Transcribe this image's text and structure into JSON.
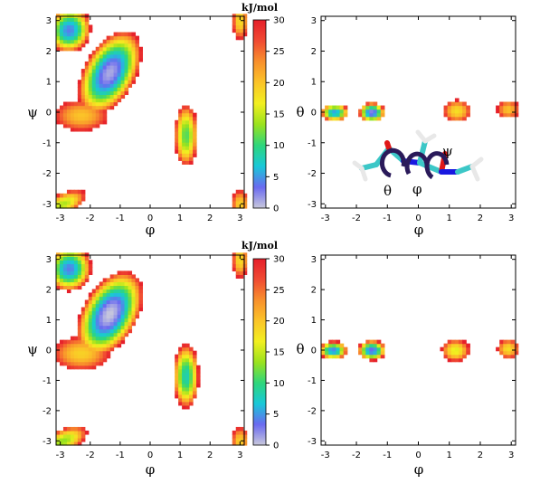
{
  "figure": {
    "colorbar_unit": "kJ/mol",
    "colorbar_ticks": [
      "0",
      "5",
      "10",
      "15",
      "20",
      "25",
      "30"
    ],
    "colorbar_range": [
      0,
      30
    ],
    "colorbar_colors": [
      "#c8c8dc",
      "#6a6af0",
      "#18c8d8",
      "#2ed67c",
      "#9ae21e",
      "#f2ef20",
      "#fbc428",
      "#f8902c",
      "#f04a32",
      "#e51e2a"
    ]
  },
  "molecule": {
    "labels": {
      "theta": "θ",
      "phi": "φ",
      "psi": "ψ"
    },
    "atom_colors": {
      "carbon": "#3cc7c7",
      "oxygen": "#e01818",
      "nitrogen": "#1818e0",
      "hydrogen": "#e8e8e8",
      "arrow": "#2a1a5a"
    }
  },
  "chart_data": [
    {
      "type": "heatmap",
      "panel": "top-left",
      "xlabel": "φ",
      "ylabel": "ψ",
      "xlim": [
        -3.14,
        3.14
      ],
      "ylim": [
        -3.14,
        3.14
      ],
      "xticks": [
        "-3",
        "-2",
        "-1",
        "0",
        "1",
        "2",
        "3"
      ],
      "yticks": [
        "-3",
        "-2",
        "-1",
        "0",
        "1",
        "2",
        "3"
      ],
      "colorbar": true,
      "basins": [
        {
          "x": -1.35,
          "y": 1.3,
          "sx": 0.85,
          "sy": 1.5,
          "rot": -30,
          "min": 1
        },
        {
          "x": -2.7,
          "y": 2.7,
          "sx": 0.7,
          "sy": 0.75,
          "rot": -30,
          "min": 4
        },
        {
          "x": -2.3,
          "y": -0.1,
          "sx": 0.9,
          "sy": 0.5,
          "rot": 0,
          "min": 20
        },
        {
          "x": 1.2,
          "y": -0.75,
          "sx": 0.38,
          "sy": 1.0,
          "rot": 0,
          "min": 11
        },
        {
          "x": -2.9,
          "y": -3.0,
          "sx": 0.8,
          "sy": 0.35,
          "rot": 25,
          "min": 14
        },
        {
          "x": 3.0,
          "y": 3.0,
          "sx": 0.25,
          "sy": 0.6,
          "rot": 0,
          "min": 18
        },
        {
          "x": 3.0,
          "y": -3.0,
          "sx": 0.28,
          "sy": 0.45,
          "rot": 0,
          "min": 19
        }
      ]
    },
    {
      "type": "heatmap",
      "panel": "top-right",
      "xlabel": "φ",
      "ylabel": "θ",
      "xlim": [
        -3.14,
        3.14
      ],
      "ylim": [
        -3.14,
        3.14
      ],
      "xticks": [
        "-3",
        "-2",
        "-1",
        "0",
        "1",
        "2",
        "3"
      ],
      "yticks": [
        "-3",
        "-2",
        "-1",
        "0",
        "1",
        "2",
        "3"
      ],
      "colorbar": false,
      "basins": [
        {
          "x": -1.5,
          "y": 0.0,
          "sx": 0.42,
          "sy": 0.32,
          "rot": 0,
          "min": 2
        },
        {
          "x": -2.7,
          "y": 0.0,
          "sx": 0.45,
          "sy": 0.28,
          "rot": 0,
          "min": 5
        },
        {
          "x": 1.25,
          "y": 0.05,
          "sx": 0.45,
          "sy": 0.36,
          "rot": 0,
          "min": 18
        },
        {
          "x": 2.9,
          "y": 0.1,
          "sx": 0.35,
          "sy": 0.3,
          "rot": 0,
          "min": 20
        }
      ]
    },
    {
      "type": "heatmap",
      "panel": "bottom-left",
      "xlabel": "φ",
      "ylabel": "ψ",
      "xlim": [
        -3.14,
        3.14
      ],
      "ylim": [
        -3.14,
        3.14
      ],
      "xticks": [
        "-3",
        "-2",
        "-1",
        "0",
        "1",
        "2",
        "3"
      ],
      "yticks": [
        "-3",
        "-2",
        "-1",
        "0",
        "1",
        "2",
        "3"
      ],
      "colorbar": true,
      "basins": [
        {
          "x": -1.35,
          "y": 1.2,
          "sx": 0.9,
          "sy": 1.55,
          "rot": -30,
          "min": 0
        },
        {
          "x": -2.7,
          "y": 2.7,
          "sx": 0.72,
          "sy": 0.75,
          "rot": -30,
          "min": 4
        },
        {
          "x": -2.3,
          "y": -0.1,
          "sx": 0.95,
          "sy": 0.55,
          "rot": 0,
          "min": 19
        },
        {
          "x": 1.2,
          "y": -0.85,
          "sx": 0.42,
          "sy": 1.05,
          "rot": 0,
          "min": 8
        },
        {
          "x": -2.9,
          "y": -3.0,
          "sx": 0.85,
          "sy": 0.38,
          "rot": 25,
          "min": 13
        },
        {
          "x": 3.0,
          "y": 3.0,
          "sx": 0.25,
          "sy": 0.6,
          "rot": 0,
          "min": 18
        },
        {
          "x": 3.0,
          "y": -3.0,
          "sx": 0.28,
          "sy": 0.45,
          "rot": 0,
          "min": 19
        }
      ]
    },
    {
      "type": "heatmap",
      "panel": "bottom-right",
      "xlabel": "φ",
      "ylabel": "θ",
      "xlim": [
        -3.14,
        3.14
      ],
      "ylim": [
        -3.14,
        3.14
      ],
      "xticks": [
        "-3",
        "-2",
        "-1",
        "0",
        "1",
        "2",
        "3"
      ],
      "yticks": [
        "-3",
        "-2",
        "-1",
        "0",
        "1",
        "2",
        "3"
      ],
      "colorbar": false,
      "basins": [
        {
          "x": -1.5,
          "y": 0.0,
          "sx": 0.45,
          "sy": 0.33,
          "rot": 0,
          "min": 3
        },
        {
          "x": -2.75,
          "y": 0.0,
          "sx": 0.45,
          "sy": 0.3,
          "rot": 0,
          "min": 4
        },
        {
          "x": 1.2,
          "y": 0.0,
          "sx": 0.45,
          "sy": 0.36,
          "rot": 0,
          "min": 16
        },
        {
          "x": 2.9,
          "y": 0.05,
          "sx": 0.35,
          "sy": 0.32,
          "rot": 0,
          "min": 18
        }
      ]
    }
  ]
}
